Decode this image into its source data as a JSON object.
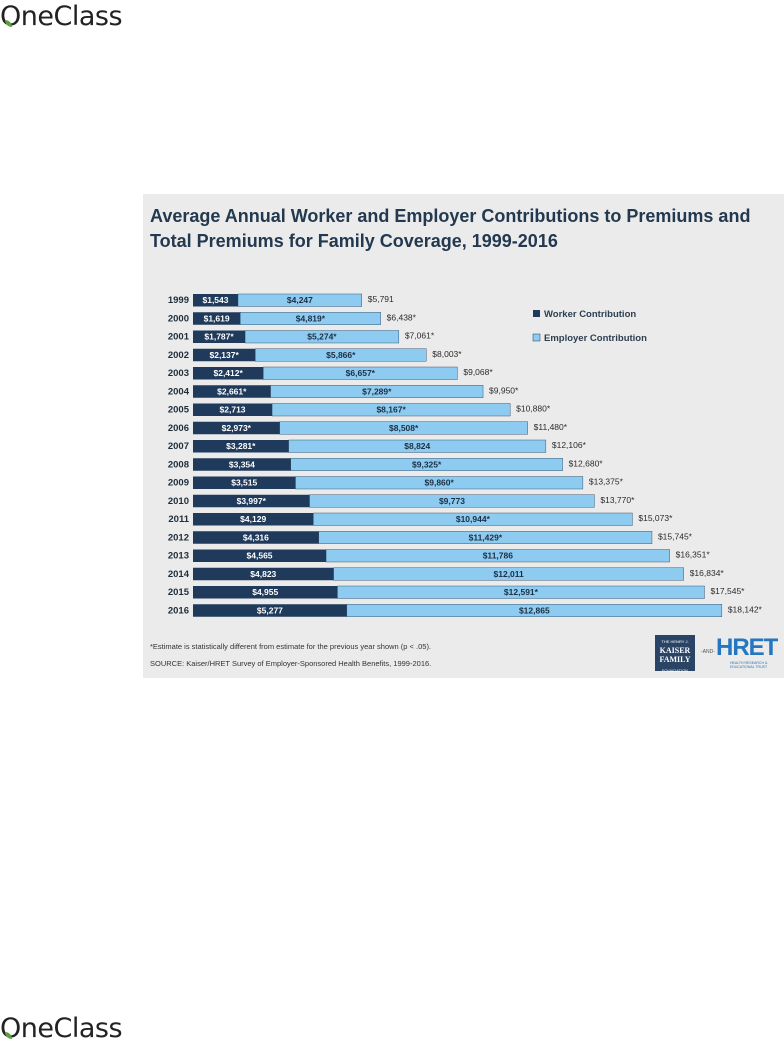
{
  "brand": {
    "name": "OneClass",
    "leaf_color": "#5aa33c"
  },
  "chart_data": {
    "type": "bar",
    "orientation": "horizontal",
    "stacked": true,
    "title": "Average Annual Worker and Employer Contributions to Premiums and Total Premiums for Family Coverage, 1999-2016",
    "categories": [
      "1999",
      "2000",
      "2001",
      "2002",
      "2003",
      "2004",
      "2005",
      "2006",
      "2007",
      "2008",
      "2009",
      "2010",
      "2011",
      "2012",
      "2013",
      "2014",
      "2015",
      "2016"
    ],
    "series": [
      {
        "name": "Worker Contribution",
        "color": "#1f3a5b",
        "values": [
          1543,
          1619,
          1787,
          2137,
          2412,
          2661,
          2713,
          2973,
          3281,
          3354,
          3515,
          3997,
          4129,
          4316,
          4565,
          4823,
          4955,
          5277
        ],
        "labels": [
          "$1,543",
          "$1,619",
          "$1,787*",
          "$2,137*",
          "$2,412*",
          "$2,661*",
          "$2,713",
          "$2,973*",
          "$3,281*",
          "$3,354",
          "$3,515",
          "$3,997*",
          "$4,129",
          "$4,316",
          "$4,565",
          "$4,823",
          "$4,955",
          "$5,277"
        ]
      },
      {
        "name": "Employer Contribution",
        "color": "#8ecbf0",
        "values": [
          4247,
          4819,
          5274,
          5866,
          6657,
          7289,
          8167,
          8508,
          8824,
          9325,
          9860,
          9773,
          10944,
          11429,
          11786,
          12011,
          12591,
          12865
        ],
        "labels": [
          "$4,247",
          "$4,819*",
          "$5,274*",
          "$5,866*",
          "$6,657*",
          "$7,289*",
          "$8,167*",
          "$8,508*",
          "$8,824",
          "$9,325*",
          "$9,860*",
          "$9,773",
          "$10,944*",
          "$11,429*",
          "$11,786",
          "$12,011",
          "$12,591*",
          "$12,865"
        ]
      }
    ],
    "totals": [
      5791,
      6438,
      7061,
      8003,
      9068,
      9950,
      10880,
      11480,
      12106,
      12680,
      13375,
      13770,
      15073,
      15745,
      16351,
      16834,
      17545,
      18142
    ],
    "total_labels": [
      "$5,791",
      "$6,438*",
      "$7,061*",
      "$8,003*",
      "$9,068*",
      "$9,950*",
      "$10,880*",
      "$11,480*",
      "$12,106*",
      "$12,680*",
      "$13,375*",
      "$13,770*",
      "$15,073*",
      "$15,745*",
      "$16,351*",
      "$16,834*",
      "$17,545*",
      "$18,142*"
    ],
    "legend_position": "top-right",
    "grid": false,
    "xlim": [
      0,
      18142
    ],
    "footnote": "*Estimate is statistically different from estimate for the previous year shown (p < .05).",
    "source": "SOURCE:  Kaiser/HRET Survey of Employer-Sponsored Health Benefits, 1999-2016."
  },
  "logos": {
    "kff_small": "THE HENRY J.",
    "kff_line1": "KAISER",
    "kff_line2": "FAMILY",
    "kff_bottom": "FOUNDATION",
    "and": "-AND-",
    "hret": "HRET",
    "hret_sub": "HEALTH RESEARCH & EDUCATIONAL TRUST"
  }
}
